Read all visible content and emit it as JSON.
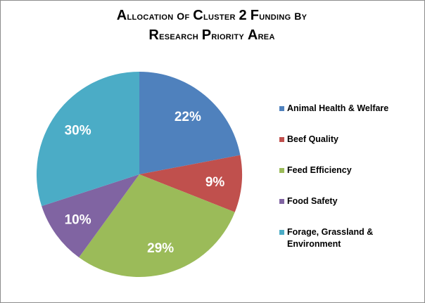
{
  "chart_data": {
    "type": "pie",
    "title_line1": "Allocation of Cluster 2 Funding by",
    "title_line2": "Research Priority Area",
    "legend_position": "right",
    "slices": [
      {
        "label": "Animal Health & Welfare",
        "value": 22,
        "value_label": "22%",
        "color": "#4f81bd"
      },
      {
        "label": "Beef Quality",
        "value": 9,
        "value_label": "9%",
        "color": "#c0504d"
      },
      {
        "label": "Feed Efficiency",
        "value": 29,
        "value_label": "29%",
        "color": "#9bbb59"
      },
      {
        "label": "Food Safety",
        "value": 10,
        "value_label": "10%",
        "color": "#8064a2"
      },
      {
        "label": "Forage, Grassland & Environment",
        "value": 30,
        "value_label": "30%",
        "color": "#4bacc6"
      }
    ]
  }
}
